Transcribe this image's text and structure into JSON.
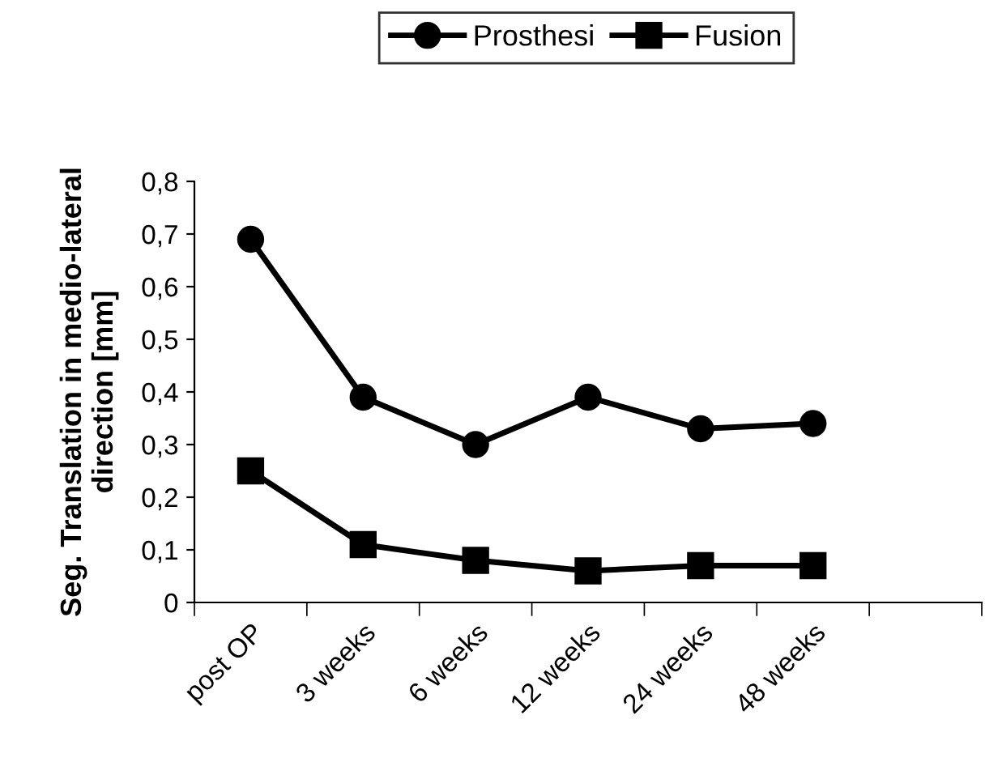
{
  "chart_data": {
    "type": "line",
    "ylabel": "Seg. Translation in medio-lateral\ndirection [mm]",
    "categories": [
      "post OP",
      "3 weeks",
      "6 weeks",
      "12 weeks",
      "24 weeks",
      "48 weeks",
      null
    ],
    "series": [
      {
        "name": "Prosthesi",
        "color": "#000000",
        "marker": "circle",
        "values": [
          0.69,
          0.39,
          0.3,
          0.39,
          0.33,
          0.34,
          null
        ]
      },
      {
        "name": "Fusion",
        "color": "#000000",
        "marker": "square",
        "values": [
          0.25,
          0.11,
          0.08,
          0.06,
          0.07,
          0.07,
          null
        ]
      }
    ],
    "ylim": [
      0,
      0.8
    ],
    "yticks": [
      {
        "value": 0,
        "label": "0"
      },
      {
        "value": 0.1,
        "label": "0,1"
      },
      {
        "value": 0.2,
        "label": "0,2"
      },
      {
        "value": 0.3,
        "label": "0,3"
      },
      {
        "value": 0.4,
        "label": "0,4"
      },
      {
        "value": 0.5,
        "label": "0,5"
      },
      {
        "value": 0.6,
        "label": "0,6"
      },
      {
        "value": 0.7,
        "label": "0,7"
      },
      {
        "value": 0.8,
        "label": "0,8"
      }
    ],
    "grid": false,
    "legend": "top",
    "line_style": "solid"
  }
}
